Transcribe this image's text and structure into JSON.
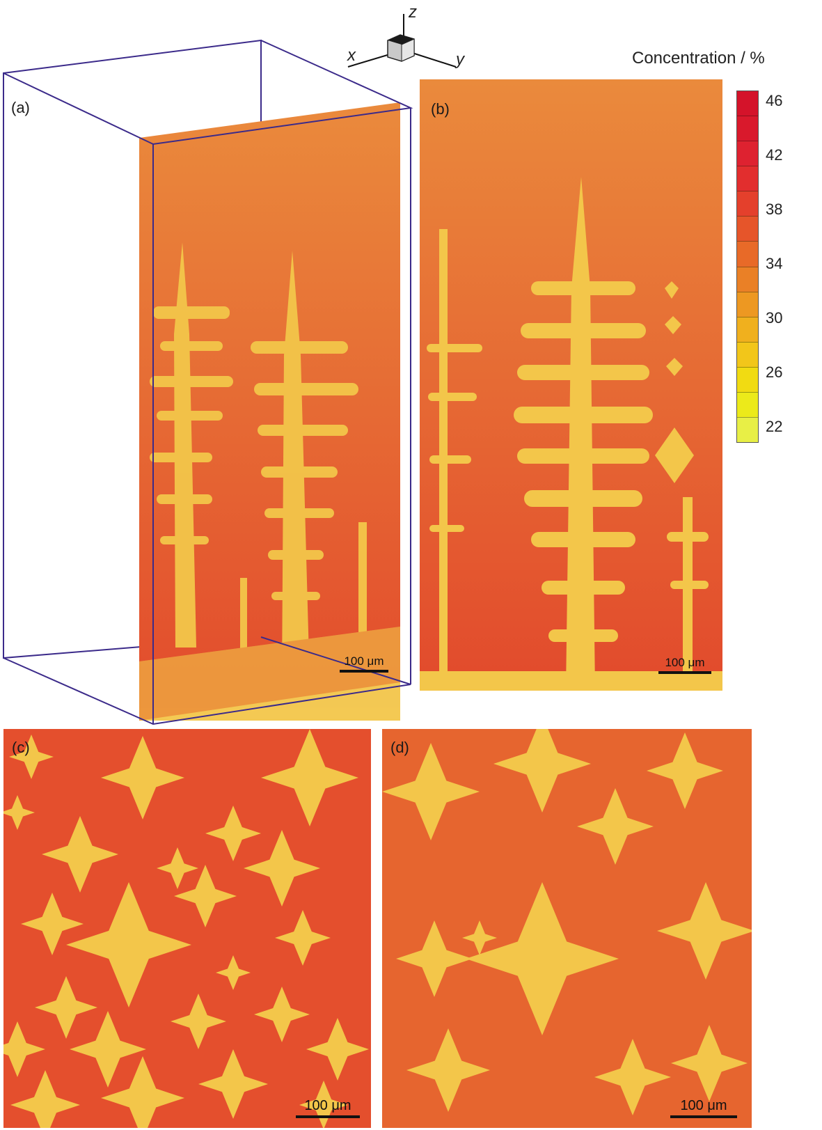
{
  "axes_triad": {
    "x": "x",
    "y": "y",
    "z": "z"
  },
  "legend": {
    "title": "Concentration / %",
    "ticks": [
      "46",
      "42",
      "38",
      "34",
      "30",
      "26",
      "22"
    ],
    "colors": [
      "#d4132a",
      "#d9192c",
      "#de2230",
      "#e22e2e",
      "#e4402c",
      "#e6552a",
      "#e86a28",
      "#ea8026",
      "#ed9822",
      "#f0b01e",
      "#f2c61a",
      "#f1db12",
      "#ecea1a",
      "#e8ef46"
    ]
  },
  "panels": {
    "a": {
      "label": "(a)",
      "scalebar": "100 μm"
    },
    "b": {
      "label": "(b)",
      "scalebar": "100 μm"
    },
    "c": {
      "label": "(c)",
      "scalebar": "100 μm"
    },
    "d": {
      "label": "(d)",
      "scalebar": "100 μm"
    }
  },
  "colors": {
    "liquid_top": "#e9833a",
    "liquid_bottom": "#e24f2e",
    "dendrite": "#f3c64a",
    "dendrite_core": "#f6d35c",
    "box_edge": "#3b2a8a"
  }
}
